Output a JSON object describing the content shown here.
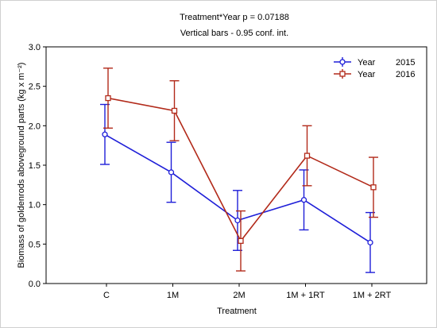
{
  "chart_data": {
    "type": "line",
    "title": "Treatment*Year p = 0.07188",
    "subtitle": "Vertical bars - 0.95 conf. int.",
    "xlabel": "Treatment",
    "ylabel": "Biomass of goldenrods aboveground parts (kg x m⁻²)",
    "categories": [
      "C",
      "1M",
      "2M",
      "1M + 1RT",
      "1M + 2RT"
    ],
    "ylim": [
      0.0,
      3.0
    ],
    "yticks": [
      "0.0",
      "0.5",
      "1.0",
      "1.5",
      "2.0",
      "2.5",
      "3.0"
    ],
    "grid": false,
    "legend_position": "top-right",
    "legend_word": "Year",
    "series": [
      {
        "name": "2015",
        "color": "#1f1fd8",
        "marker": "circle",
        "values": [
          1.89,
          1.41,
          0.8,
          1.06,
          0.52
        ],
        "ci_low": [
          1.51,
          1.03,
          0.42,
          0.68,
          0.14
        ],
        "ci_high": [
          2.27,
          1.79,
          1.18,
          1.44,
          0.9
        ]
      },
      {
        "name": "2016",
        "color": "#b22a1a",
        "marker": "square",
        "values": [
          2.35,
          2.19,
          0.54,
          1.62,
          1.22
        ],
        "ci_low": [
          1.97,
          1.81,
          0.16,
          1.24,
          0.84
        ],
        "ci_high": [
          2.73,
          2.57,
          0.92,
          2.0,
          1.6
        ]
      }
    ]
  }
}
